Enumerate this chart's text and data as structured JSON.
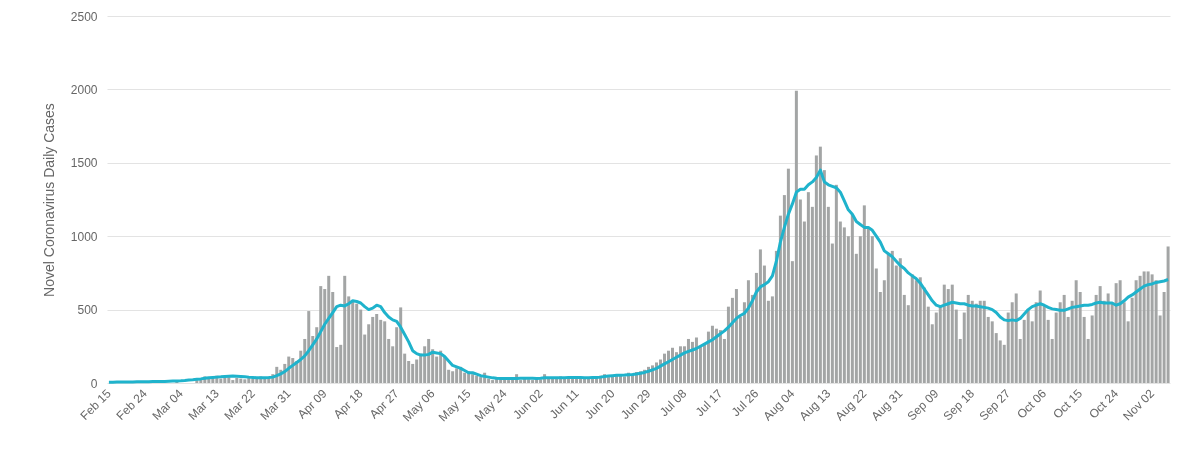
{
  "chart_data": {
    "type": "bar",
    "ylabel": "Novel Coronavirus Daily Cases",
    "ylim": [
      0,
      2500
    ],
    "yticks": [
      0,
      500,
      1000,
      1500,
      2000,
      2500
    ],
    "grid": "y",
    "categories": [
      "Feb 15",
      null,
      null,
      null,
      null,
      null,
      null,
      null,
      null,
      "Feb 24",
      null,
      null,
      null,
      null,
      null,
      null,
      null,
      null,
      "Mar 04",
      null,
      null,
      null,
      null,
      null,
      null,
      null,
      null,
      "Mar 13",
      null,
      null,
      null,
      null,
      null,
      null,
      null,
      null,
      "Mar 22",
      null,
      null,
      null,
      null,
      null,
      null,
      null,
      null,
      "Mar 31",
      null,
      null,
      null,
      null,
      null,
      null,
      null,
      null,
      "Apr 09",
      null,
      null,
      null,
      null,
      null,
      null,
      null,
      null,
      "Apr 18",
      null,
      null,
      null,
      null,
      null,
      null,
      null,
      null,
      "Apr 27",
      null,
      null,
      null,
      null,
      null,
      null,
      null,
      null,
      "May 06",
      null,
      null,
      null,
      null,
      null,
      null,
      null,
      null,
      "May 15",
      null,
      null,
      null,
      null,
      null,
      null,
      null,
      null,
      "May 24",
      null,
      null,
      null,
      null,
      null,
      null,
      null,
      null,
      "Jun 02",
      null,
      null,
      null,
      null,
      null,
      null,
      null,
      null,
      "Jun 11",
      null,
      null,
      null,
      null,
      null,
      null,
      null,
      null,
      "Jun 20",
      null,
      null,
      null,
      null,
      null,
      null,
      null,
      null,
      "Jun 29",
      null,
      null,
      null,
      null,
      null,
      null,
      null,
      null,
      "Jul 08",
      null,
      null,
      null,
      null,
      null,
      null,
      null,
      null,
      "Jul 17",
      null,
      null,
      null,
      null,
      null,
      null,
      null,
      null,
      "Jul 26",
      null,
      null,
      null,
      null,
      null,
      null,
      null,
      null,
      "Aug 04",
      null,
      null,
      null,
      null,
      null,
      null,
      null,
      null,
      "Aug 13",
      null,
      null,
      null,
      null,
      null,
      null,
      null,
      null,
      "Aug 22",
      null,
      null,
      null,
      null,
      null,
      null,
      null,
      null,
      "Aug 31",
      null,
      null,
      null,
      null,
      null,
      null,
      null,
      null,
      "Sep 09",
      null,
      null,
      null,
      null,
      null,
      null,
      null,
      null,
      "Sep 18",
      null,
      null,
      null,
      null,
      null,
      null,
      null,
      null,
      "Sep 27",
      null,
      null,
      null,
      null,
      null,
      null,
      null,
      null,
      "Oct 06",
      null,
      null,
      null,
      null,
      null,
      null,
      null,
      null,
      "Oct 15",
      null,
      null,
      null,
      null,
      null,
      null,
      null,
      null,
      "Oct 24",
      null,
      null,
      null,
      null,
      null,
      null,
      null,
      null,
      "Nov 02",
      null,
      null,
      null,
      null
    ],
    "series": [
      {
        "type": "bar",
        "color": "#a3a5a5",
        "values": [
          null,
          null,
          null,
          null,
          null,
          null,
          null,
          null,
          null,
          null,
          null,
          null,
          null,
          null,
          null,
          null,
          null,
          12,
          null,
          null,
          null,
          null,
          20,
          30,
          45,
          40,
          35,
          50,
          30,
          45,
          40,
          20,
          35,
          30,
          25,
          40,
          30,
          35,
          45,
          30,
          40,
          60,
          110,
          90,
          130,
          180,
          170,
          150,
          220,
          300,
          490,
          320,
          380,
          660,
          640,
          730,
          620,
          245,
          260,
          730,
          590,
          560,
          540,
          500,
          330,
          400,
          450,
          470,
          430,
          420,
          300,
          250,
          380,
          515,
          200,
          150,
          130,
          160,
          200,
          250,
          300,
          230,
          180,
          220,
          180,
          90,
          80,
          100,
          110,
          70,
          80,
          60,
          50,
          40,
          70,
          30,
          20,
          30,
          25,
          30,
          20,
          25,
          60,
          20,
          30,
          25,
          20,
          30,
          25,
          60,
          30,
          40,
          35,
          45,
          30,
          40,
          35,
          40,
          30,
          35,
          40,
          30,
          45,
          50,
          60,
          40,
          55,
          60,
          50,
          45,
          70,
          60,
          75,
          80,
          90,
          110,
          120,
          140,
          160,
          200,
          220,
          240,
          210,
          250,
          250,
          300,
          280,
          310,
          250,
          260,
          350,
          390,
          370,
          360,
          300,
          520,
          580,
          640,
          450,
          550,
          700,
          600,
          750,
          910,
          800,
          560,
          590,
          900,
          1140,
          1280,
          1460,
          830,
          1990,
          1250,
          1100,
          1300,
          1200,
          1550,
          1610,
          1450,
          1200,
          950,
          1350,
          1100,
          1060,
          1000,
          1150,
          880,
          1000,
          1210,
          1050,
          1000,
          780,
          620,
          700,
          880,
          900,
          800,
          850,
          600,
          530,
          740,
          700,
          720,
          650,
          520,
          400,
          480,
          520,
          670,
          640,
          670,
          500,
          300,
          480,
          600,
          560,
          540,
          560,
          560,
          450,
          420,
          340,
          290,
          260,
          480,
          550,
          610,
          300,
          430,
          500,
          420,
          550,
          630,
          530,
          430,
          300,
          480,
          550,
          600,
          450,
          560,
          700,
          620,
          450,
          300,
          460,
          600,
          660,
          560,
          610,
          540,
          680,
          700,
          550,
          420,
          580,
          700,
          730,
          760,
          760,
          740,
          700,
          460,
          620,
          930
        ]
      },
      {
        "type": "line",
        "color": "#1fb3cc",
        "values": [
          5,
          5,
          6,
          6,
          6,
          7,
          7,
          8,
          8,
          9,
          9,
          10,
          10,
          10,
          11,
          12,
          13,
          14,
          15,
          17,
          20,
          22,
          25,
          28,
          32,
          36,
          38,
          40,
          42,
          45,
          46,
          47,
          46,
          45,
          43,
          40,
          38,
          36,
          35,
          35,
          37,
          40,
          50,
          62,
          78,
          100,
          120,
          140,
          160,
          185,
          220,
          260,
          300,
          350,
          400,
          440,
          480,
          520,
          530,
          525,
          540,
          560,
          555,
          545,
          520,
          500,
          510,
          530,
          520,
          480,
          450,
          430,
          420,
          380,
          330,
          280,
          220,
          200,
          190,
          190,
          195,
          210,
          205,
          200,
          180,
          150,
          120,
          110,
          100,
          85,
          70,
          70,
          60,
          50,
          45,
          40,
          35,
          32,
          30,
          30,
          30,
          30,
          30,
          32,
          32,
          32,
          32,
          30,
          32,
          35,
          35,
          36,
          36,
          36,
          36,
          37,
          37,
          37,
          37,
          36,
          36,
          37,
          38,
          40,
          44,
          48,
          50,
          52,
          53,
          54,
          56,
          58,
          61,
          66,
          72,
          80,
          90,
          100,
          115,
          130,
          145,
          160,
          175,
          190,
          205,
          215,
          225,
          235,
          250,
          265,
          280,
          295,
          315,
          335,
          355,
          380,
          410,
          440,
          460,
          475,
          510,
          560,
          620,
          655,
          670,
          690,
          730,
          830,
          960,
          1060,
          1150,
          1220,
          1300,
          1320,
          1320,
          1350,
          1370,
          1400,
          1450,
          1370,
          1350,
          1340,
          1330,
          1300,
          1240,
          1180,
          1150,
          1100,
          1080,
          1060,
          1060,
          1040,
          1000,
          960,
          900,
          880,
          860,
          830,
          800,
          780,
          750,
          730,
          710,
          680,
          640,
          600,
          560,
          530,
          520,
          530,
          540,
          550,
          545,
          540,
          540,
          530,
          525,
          525,
          520,
          515,
          510,
          500,
          480,
          450,
          430,
          425,
          430,
          425,
          440,
          470,
          500,
          520,
          530,
          540,
          530,
          515,
          505,
          500,
          495,
          495,
          505,
          515,
          520,
          525,
          530,
          530,
          535,
          545,
          550,
          545,
          545,
          545,
          530,
          540,
          560,
          585,
          600,
          620,
          640,
          660,
          670,
          675,
          685,
          690,
          695,
          705
        ]
      }
    ]
  }
}
